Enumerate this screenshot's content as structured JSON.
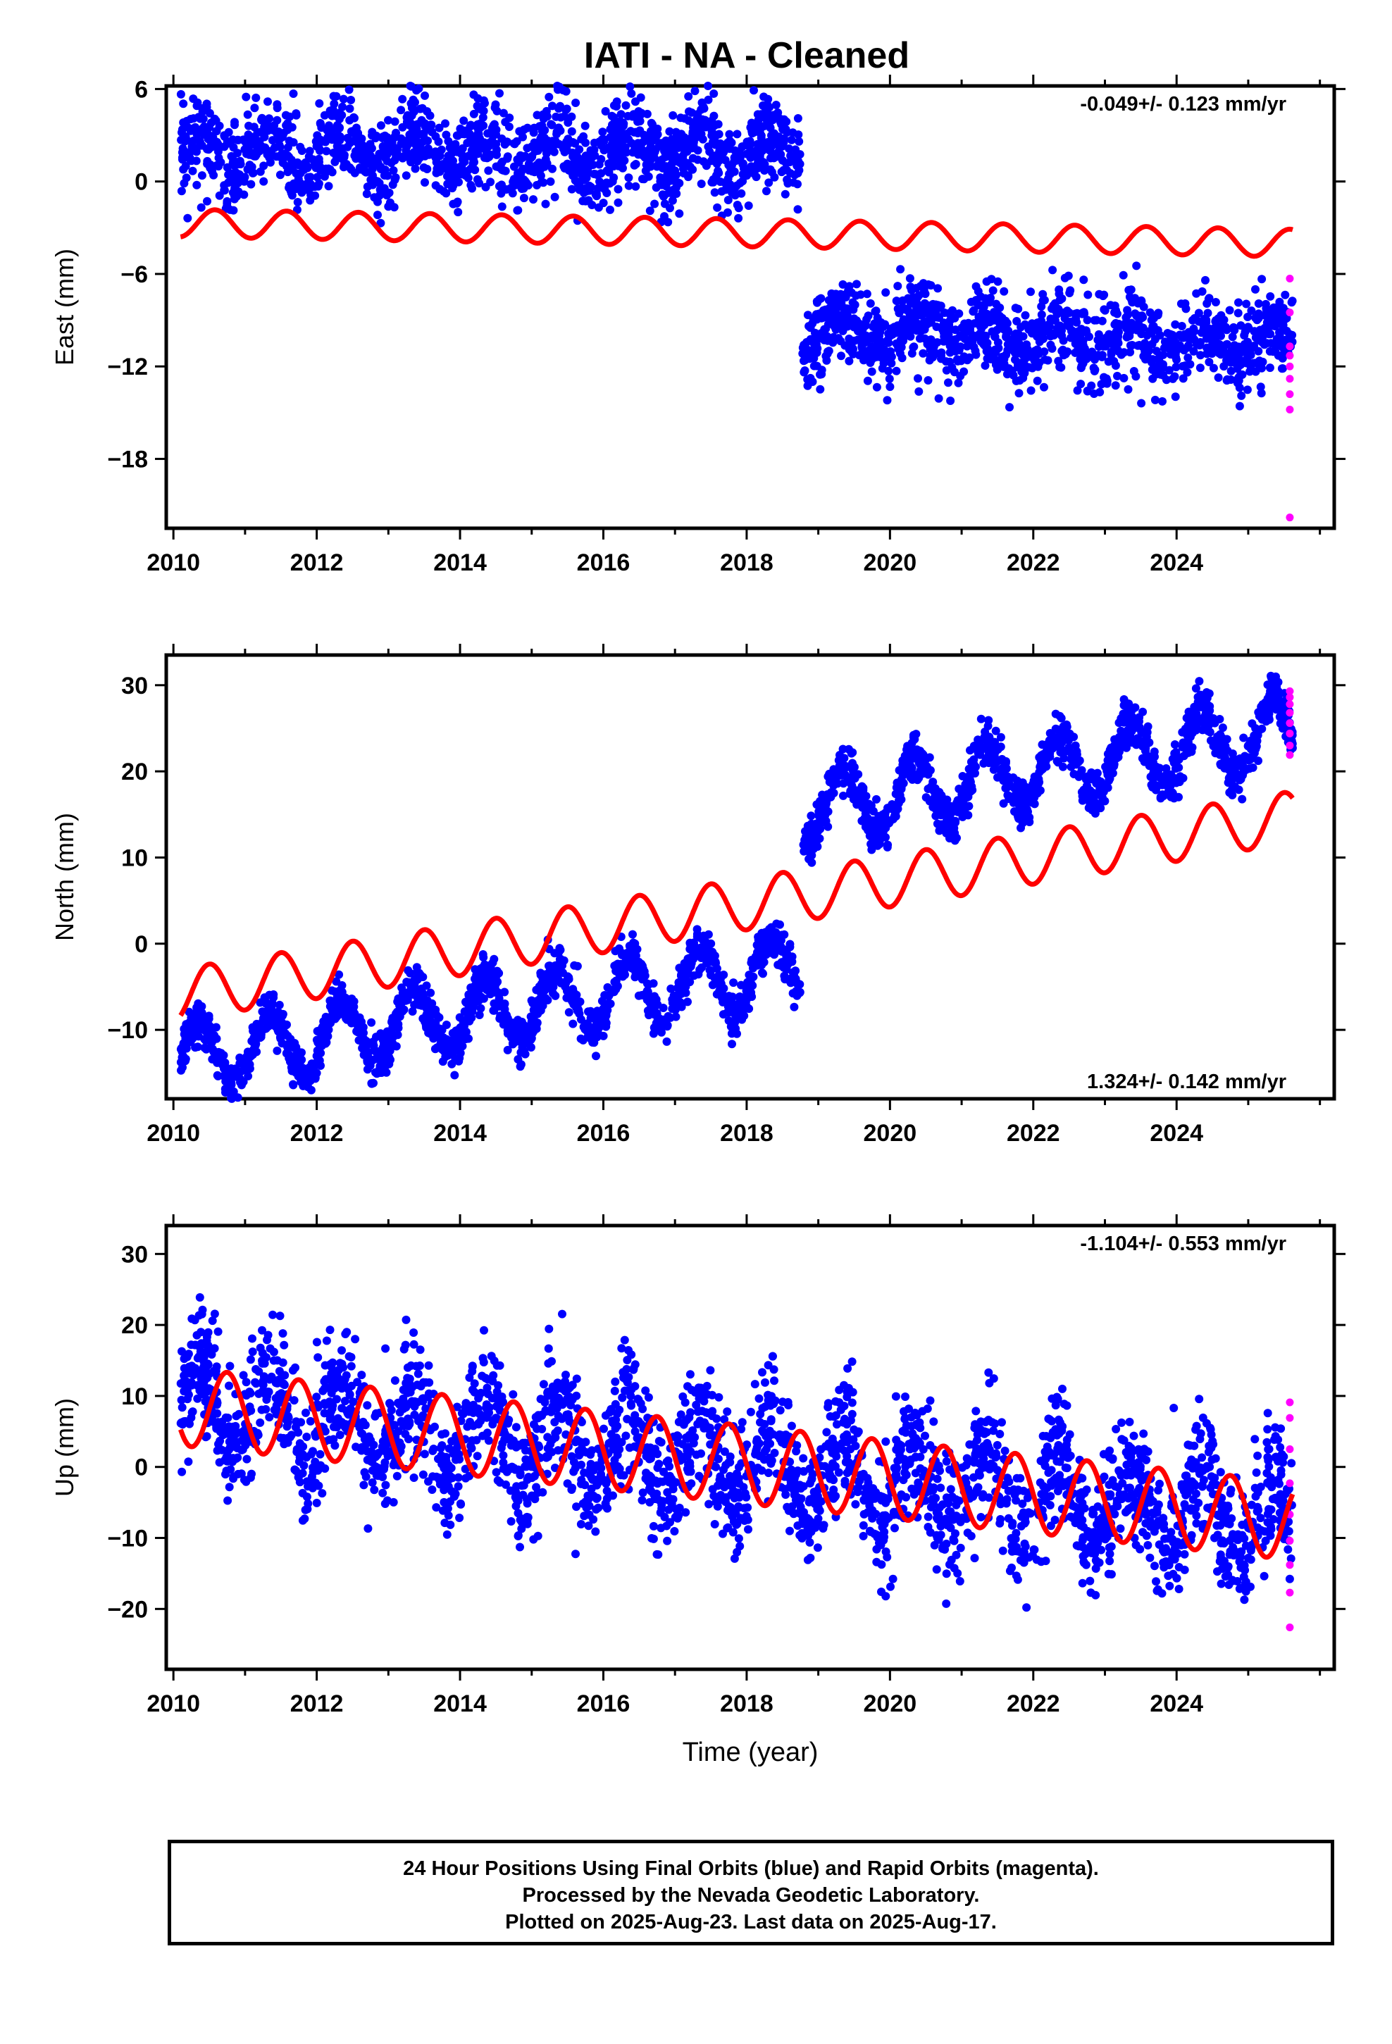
{
  "title": "IATI  - NA - Cleaned",
  "footer": {
    "line1": "24 Hour Positions Using Final Orbits (blue) and Rapid Orbits (magenta).",
    "line2": "Processed by the Nevada Geodetic Laboratory.",
    "line3": "Plotted on 2025-Aug-23. Last data on 2025-Aug-17."
  },
  "colors": {
    "final": "#0000ff",
    "rapid": "#ff00ff",
    "model": "#ff0000",
    "axes": "#000000"
  },
  "chart_data": [
    {
      "type": "scatter",
      "component": "east",
      "ylabel": "East (mm)",
      "xlabel": "",
      "rate_text": "-0.049+/- 0.123 mm/yr",
      "rate_position": "top-right",
      "xlim": [
        2009.9,
        2026.2
      ],
      "ylim": [
        -22.5,
        6.2
      ],
      "xticks": [
        2010,
        2012,
        2014,
        2016,
        2018,
        2020,
        2022,
        2024
      ],
      "yticks": [
        6,
        0,
        -6,
        -12,
        -18
      ],
      "series": [
        {
          "name": "Final Orbits",
          "segments": [
            {
              "t_start": 2010.1,
              "t_end": 2018.75,
              "base_start": 1.8,
              "base_end": 1.9,
              "annual_amp": 1.2,
              "noise": 1.4
            },
            {
              "t_start": 2018.78,
              "t_end": 2025.62,
              "base_start": -9.6,
              "base_end": -10.6,
              "annual_amp": 1.0,
              "noise": 1.4
            }
          ]
        },
        {
          "name": "Rapid Orbits",
          "points": [
            [
              2025.58,
              -6.3
            ],
            [
              2025.58,
              -8.5
            ],
            [
              2025.58,
              -10.7
            ],
            [
              2025.58,
              -11.3
            ],
            [
              2025.58,
              -12.0
            ],
            [
              2025.58,
              -12.8
            ],
            [
              2025.58,
              -13.8
            ],
            [
              2025.58,
              -14.8
            ],
            [
              2025.58,
              -21.8
            ]
          ]
        },
        {
          "name": "Model",
          "line": [
            [
              2010.1,
              -2.7
            ],
            [
              2018.75,
              -3.4
            ],
            [
              2025.62,
              -4.0
            ]
          ],
          "annual_amp": 0.9,
          "phase": 0.58
        }
      ]
    },
    {
      "type": "scatter",
      "component": "north",
      "ylabel": "North (mm)",
      "xlabel": "",
      "rate_text": "1.324+/- 0.142 mm/yr",
      "rate_position": "bottom-right",
      "xlim": [
        2009.9,
        2026.2
      ],
      "ylim": [
        -18.0,
        33.5
      ],
      "xticks": [
        2010,
        2012,
        2014,
        2016,
        2018,
        2020,
        2022,
        2024
      ],
      "yticks": [
        30,
        20,
        10,
        0,
        -10
      ],
      "series": [
        {
          "name": "Final Orbits",
          "segments": [
            {
              "t_start": 2010.1,
              "t_end": 2018.75,
              "base_start": -13.3,
              "base_end": -2.7,
              "annual_amp": 4.0,
              "noise": 1.3
            },
            {
              "t_start": 2018.78,
              "t_end": 2025.62,
              "base_start": 15.6,
              "base_end": 24.7,
              "annual_amp": 4.0,
              "noise": 1.3
            }
          ]
        },
        {
          "name": "Rapid Orbits",
          "points": [
            [
              2025.58,
              29.3
            ],
            [
              2025.58,
              28.6
            ],
            [
              2025.58,
              27.8
            ],
            [
              2025.58,
              26.8
            ],
            [
              2025.58,
              25.6
            ],
            [
              2025.58,
              24.4
            ],
            [
              2025.58,
              23.0
            ],
            [
              2025.58,
              21.9
            ]
          ]
        },
        {
          "name": "Model",
          "line": [
            [
              2010.1,
              -5.9
            ],
            [
              2018.75,
              5.6
            ],
            [
              2025.62,
              14.7
            ]
          ],
          "annual_amp": 3.0,
          "phase": 0.5
        }
      ]
    },
    {
      "type": "scatter",
      "component": "up",
      "ylabel": "Up (mm)",
      "xlabel": "Time (year)",
      "rate_text": "-1.104+/- 0.553 mm/yr",
      "rate_position": "top-right",
      "xlim": [
        2009.9,
        2026.2
      ],
      "ylim": [
        -28.5,
        34.0
      ],
      "xticks": [
        2010,
        2012,
        2014,
        2016,
        2018,
        2020,
        2022,
        2024
      ],
      "yticks": [
        30,
        20,
        10,
        0,
        -10,
        -20
      ],
      "series": [
        {
          "name": "Final Orbits",
          "segments": [
            {
              "t_start": 2010.1,
              "t_end": 2025.62,
              "base_start": 8.5,
              "base_end": -7.6,
              "annual_amp": 5.5,
              "noise": 4.3
            }
          ]
        },
        {
          "name": "Rapid Orbits",
          "points": [
            [
              2025.58,
              9.1
            ],
            [
              2025.58,
              6.9
            ],
            [
              2025.58,
              2.5
            ],
            [
              2025.58,
              -2.3
            ],
            [
              2025.58,
              -6.7
            ],
            [
              2025.58,
              -10.4
            ],
            [
              2025.58,
              -13.8
            ],
            [
              2025.58,
              -17.7
            ],
            [
              2025.58,
              -22.6
            ]
          ]
        },
        {
          "name": "Model",
          "line": [
            [
              2010.1,
              8.5
            ],
            [
              2025.62,
              -7.6
            ]
          ],
          "annual_amp": 5.5,
          "phase": 0.75
        }
      ]
    }
  ]
}
